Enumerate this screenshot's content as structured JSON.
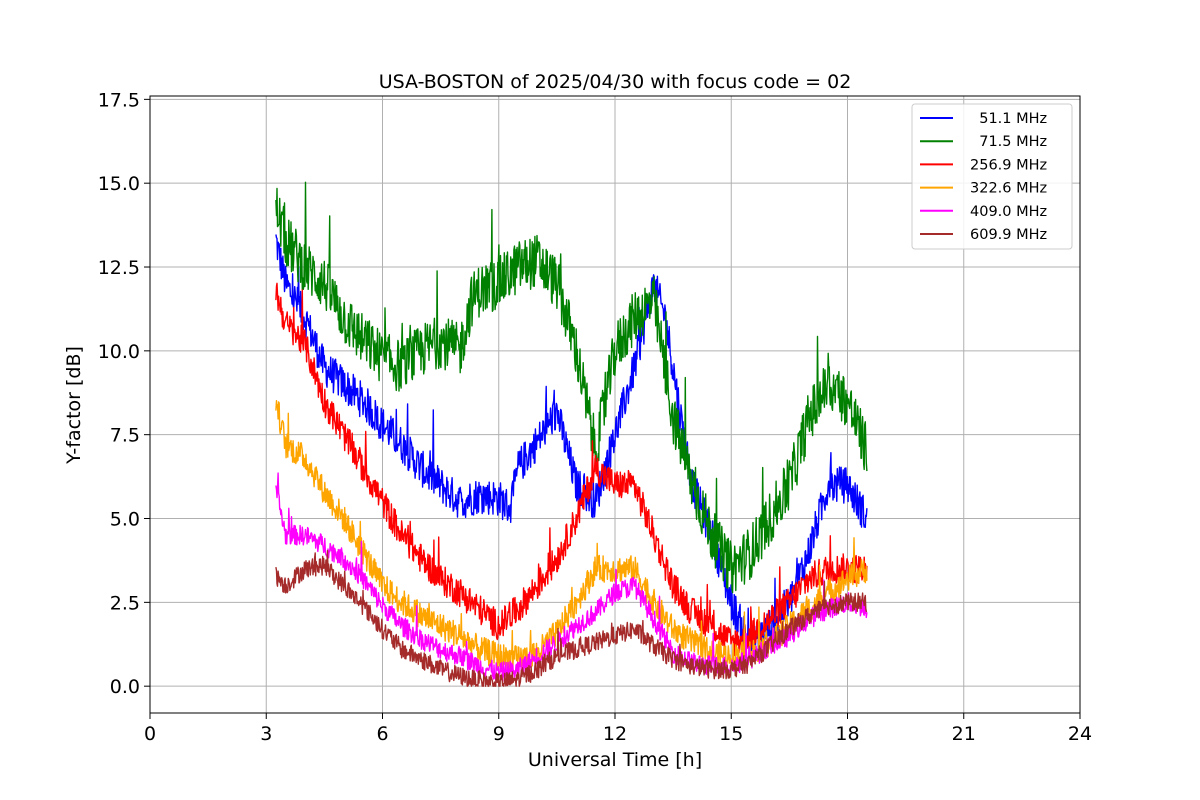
{
  "chart_data": {
    "type": "line",
    "title": "USA-BOSTON of 2025/04/30 with focus code = 02",
    "xlabel": "Universal Time [h]",
    "ylabel": "Y-factor [dB]",
    "xlim": [
      0,
      24
    ],
    "ylim": [
      -0.8,
      17.6
    ],
    "xticks": [
      0,
      3,
      6,
      9,
      12,
      15,
      18,
      21,
      24
    ],
    "xtick_labels": [
      "0",
      "3",
      "6",
      "9",
      "12",
      "15",
      "18",
      "21",
      "24"
    ],
    "yticks": [
      0.0,
      2.5,
      5.0,
      7.5,
      10.0,
      12.5,
      15.0,
      17.5
    ],
    "ytick_labels": [
      "0.0",
      "2.5",
      "5.0",
      "7.5",
      "10.0",
      "12.5",
      "15.0",
      "17.5"
    ],
    "grid": true,
    "legend_position": "top-right",
    "series": [
      {
        "name": "  51.1 MHz",
        "color": "#0000ff",
        "noise": 0.55,
        "x": [
          3.25,
          3.5,
          4.0,
          4.5,
          5.0,
          5.5,
          6.0,
          6.5,
          7.0,
          7.5,
          8.0,
          8.5,
          9.0,
          9.3,
          9.5,
          10.0,
          10.5,
          11.0,
          11.5,
          12.0,
          12.5,
          13.0,
          13.3,
          13.7,
          14.0,
          14.5,
          15.0,
          15.5,
          16.0,
          16.5,
          17.0,
          17.5,
          18.0,
          18.5
        ],
        "values": [
          13.3,
          12.0,
          11.0,
          9.5,
          9.0,
          8.5,
          7.8,
          7.2,
          6.5,
          6.0,
          5.5,
          5.7,
          5.6,
          5.3,
          6.5,
          7.3,
          8.2,
          6.0,
          5.5,
          7.5,
          9.5,
          12.0,
          11.0,
          8.0,
          6.0,
          4.5,
          2.5,
          1.2,
          1.8,
          2.5,
          4.0,
          6.0,
          6.0,
          5.0
        ]
      },
      {
        "name": "  71.5 MHz",
        "color": "#008000",
        "noise": 0.8,
        "x": [
          3.25,
          3.5,
          4.0,
          4.5,
          5.0,
          5.5,
          6.0,
          6.5,
          7.0,
          7.5,
          8.0,
          8.3,
          8.5,
          9.0,
          9.5,
          10.0,
          10.5,
          11.0,
          11.5,
          12.0,
          12.5,
          13.0,
          13.5,
          14.0,
          14.5,
          15.0,
          15.5,
          16.0,
          16.5,
          17.0,
          17.5,
          18.0,
          18.5
        ],
        "values": [
          14.3,
          13.3,
          12.5,
          12.0,
          11.0,
          10.3,
          9.8,
          9.5,
          10.0,
          10.3,
          10.0,
          11.5,
          11.8,
          12.0,
          12.5,
          12.7,
          12.0,
          10.0,
          7.0,
          10.0,
          11.0,
          11.5,
          8.0,
          6.0,
          4.5,
          3.5,
          4.0,
          5.0,
          6.0,
          8.0,
          9.0,
          8.5,
          7.0
        ]
      },
      {
        "name": "256.9 MHz",
        "color": "#ff0000",
        "noise": 0.45,
        "x": [
          3.25,
          3.5,
          4.0,
          4.5,
          5.0,
          5.5,
          6.0,
          6.5,
          7.0,
          7.5,
          8.0,
          8.5,
          9.0,
          9.5,
          10.0,
          10.5,
          11.0,
          11.5,
          12.0,
          12.5,
          13.0,
          13.5,
          14.0,
          14.5,
          15.0,
          15.5,
          16.0,
          16.5,
          17.0,
          17.5,
          18.0,
          18.5
        ],
        "values": [
          11.8,
          10.8,
          10.2,
          8.5,
          7.5,
          6.5,
          5.5,
          4.5,
          3.8,
          3.2,
          2.8,
          2.3,
          1.8,
          2.3,
          3.0,
          3.8,
          5.0,
          6.5,
          6.0,
          6.0,
          4.5,
          3.0,
          2.2,
          1.8,
          1.3,
          1.5,
          2.0,
          2.5,
          3.2,
          3.5,
          3.5,
          3.5
        ]
      },
      {
        "name": "322.6 MHz",
        "color": "#ffa500",
        "noise": 0.4,
        "x": [
          3.25,
          3.5,
          4.0,
          4.5,
          5.0,
          5.5,
          6.0,
          6.5,
          7.0,
          7.5,
          8.0,
          8.5,
          9.0,
          9.5,
          10.0,
          10.5,
          11.0,
          11.5,
          12.0,
          12.5,
          13.0,
          13.5,
          14.0,
          14.5,
          15.0,
          15.5,
          16.0,
          16.5,
          17.0,
          17.5,
          18.0,
          18.5
        ],
        "values": [
          8.5,
          7.2,
          6.8,
          5.8,
          5.0,
          4.0,
          3.0,
          2.5,
          2.1,
          1.8,
          1.5,
          1.1,
          0.9,
          0.8,
          1.0,
          1.6,
          2.5,
          3.5,
          3.5,
          3.5,
          2.5,
          1.7,
          1.3,
          1.0,
          0.9,
          1.0,
          1.3,
          1.8,
          2.3,
          2.8,
          3.2,
          3.5
        ]
      },
      {
        "name": "409.0 MHz",
        "color": "#ff00ff",
        "noise": 0.3,
        "x": [
          3.25,
          3.5,
          4.0,
          4.5,
          5.0,
          5.5,
          6.0,
          6.5,
          7.0,
          7.5,
          8.0,
          8.5,
          9.0,
          9.5,
          10.0,
          10.5,
          11.0,
          11.5,
          12.0,
          12.5,
          13.0,
          13.5,
          14.0,
          14.5,
          15.0,
          15.5,
          16.0,
          16.5,
          17.0,
          17.5,
          18.0,
          18.5
        ],
        "values": [
          5.9,
          4.5,
          4.5,
          4.2,
          3.8,
          3.2,
          2.4,
          1.8,
          1.4,
          1.1,
          0.9,
          0.6,
          0.4,
          0.5,
          0.9,
          1.3,
          1.8,
          2.2,
          2.8,
          3.0,
          2.0,
          1.0,
          0.7,
          0.6,
          0.6,
          0.8,
          1.2,
          1.5,
          2.0,
          2.3,
          2.5,
          2.3
        ]
      },
      {
        "name": "609.9 MHz",
        "color": "#a52a2a",
        "noise": 0.28,
        "x": [
          3.25,
          3.5,
          4.0,
          4.5,
          5.0,
          5.5,
          6.0,
          6.5,
          7.0,
          7.5,
          8.0,
          8.5,
          9.0,
          9.5,
          10.0,
          10.5,
          11.0,
          11.5,
          12.0,
          12.5,
          13.0,
          13.5,
          14.0,
          14.5,
          15.0,
          15.5,
          16.0,
          16.5,
          17.0,
          17.5,
          18.0,
          18.5
        ],
        "values": [
          3.3,
          3.0,
          3.5,
          3.6,
          3.0,
          2.4,
          1.7,
          1.1,
          0.8,
          0.5,
          0.3,
          0.15,
          0.1,
          0.2,
          0.5,
          0.9,
          1.1,
          1.3,
          1.5,
          1.7,
          1.2,
          0.8,
          0.6,
          0.5,
          0.5,
          0.7,
          1.2,
          1.7,
          2.1,
          2.4,
          2.5,
          2.5
        ]
      }
    ]
  }
}
